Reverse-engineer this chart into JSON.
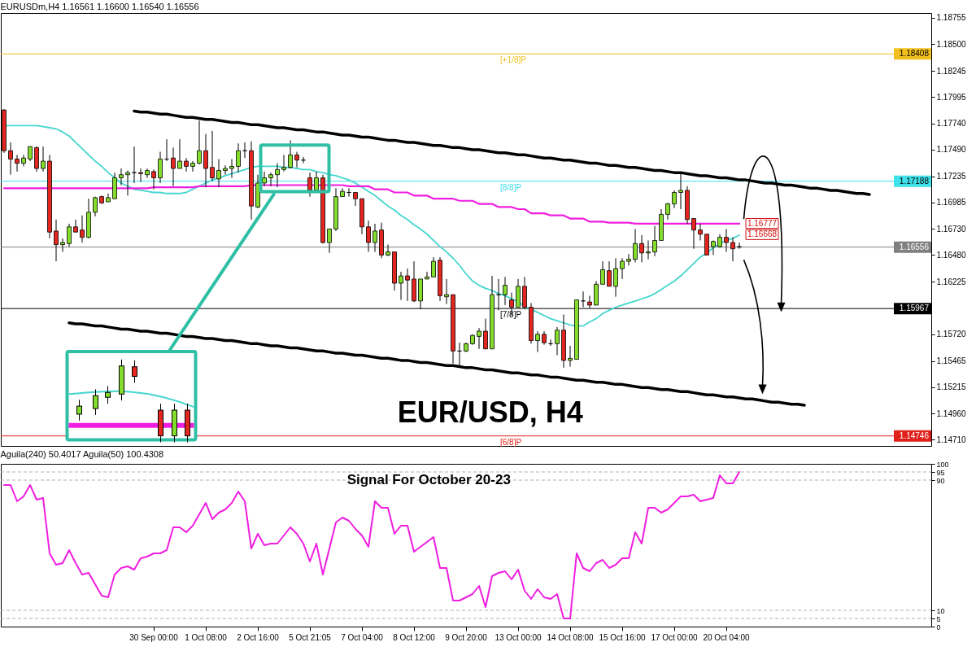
{
  "chart_data": [
    {
      "type": "candlestick",
      "title": "EURUSDm,H4  1.16561 1.16600 1.16540 1.16556",
      "categories": [
        null,
        null,
        null,
        null,
        null,
        null,
        null,
        null,
        null,
        null,
        null,
        null,
        null,
        null,
        null,
        null,
        null,
        null,
        null,
        null,
        null,
        null,
        null,
        null,
        null,
        null,
        null,
        null,
        null,
        null,
        null,
        null,
        null,
        null,
        null,
        null,
        null,
        null,
        null,
        null,
        null,
        null,
        null,
        null,
        null,
        null,
        null,
        null,
        null,
        null,
        null,
        null,
        null,
        null,
        null,
        null,
        null,
        null,
        null,
        null,
        null,
        null,
        null,
        null,
        null,
        null,
        null,
        null,
        null,
        null,
        null,
        null,
        null,
        null,
        null,
        null,
        null,
        null,
        null,
        null,
        null,
        null,
        null,
        null,
        null,
        null,
        null,
        null,
        null,
        null,
        null,
        null,
        null,
        null,
        null,
        null,
        null,
        null,
        null,
        null,
        null,
        null,
        null,
        null,
        null,
        null,
        null,
        null,
        null,
        null,
        null,
        null,
        null,
        null,
        null,
        null,
        null,
        null,
        null,
        null,
        null,
        null,
        null,
        null,
        null,
        null,
        null,
        null,
        null,
        null,
        null,
        null,
        null,
        null,
        null,
        null,
        null,
        null,
        null,
        null,
        null,
        null,
        null
      ],
      "ohlc": [
        [
          1.1787,
          1.1788,
          1.1746,
          1.1748
        ],
        [
          1.1748,
          1.1756,
          1.1725,
          1.174
        ],
        [
          1.174,
          1.1744,
          1.1728,
          1.1736
        ],
        [
          1.1736,
          1.1744,
          1.1733,
          1.1741
        ],
        [
          1.174,
          1.1752,
          1.1738,
          1.1752
        ],
        [
          1.1751,
          1.1752,
          1.1728,
          1.1731
        ],
        [
          1.1731,
          1.1752,
          1.1728,
          1.1738
        ],
        [
          1.1738,
          1.1744,
          1.1664,
          1.167
        ],
        [
          1.1671,
          1.1682,
          1.1642,
          1.1658
        ],
        [
          1.1658,
          1.1664,
          1.1651,
          1.166
        ],
        [
          1.1659,
          1.1678,
          1.1656,
          1.1675
        ],
        [
          1.1675,
          1.1682,
          1.167,
          1.167
        ],
        [
          1.1672,
          1.1686,
          1.166,
          1.1665
        ],
        [
          1.1665,
          1.1702,
          1.1664,
          1.1689
        ],
        [
          1.1689,
          1.1704,
          1.1685,
          1.1703
        ],
        [
          1.1704,
          1.1705,
          1.1697,
          1.1698
        ],
        [
          1.1699,
          1.1707,
          1.1699,
          1.1703
        ],
        [
          1.1702,
          1.1727,
          1.1702,
          1.1722
        ],
        [
          1.1722,
          1.1731,
          1.1715,
          1.1725
        ],
        [
          1.1725,
          1.1729,
          1.1705,
          1.1727
        ],
        [
          1.1727,
          1.1752,
          1.1717,
          1.1727
        ],
        [
          1.1727,
          1.1731,
          1.1718,
          1.1726
        ],
        [
          1.1725,
          1.1731,
          1.1722,
          1.1729
        ],
        [
          1.1728,
          1.173,
          1.1711,
          1.1722
        ],
        [
          1.1722,
          1.1747,
          1.1717,
          1.174
        ],
        [
          1.174,
          1.1759,
          1.1738,
          1.174
        ],
        [
          1.1741,
          1.1751,
          1.1714,
          1.1731
        ],
        [
          1.1731,
          1.1759,
          1.1731,
          1.1738
        ],
        [
          1.1738,
          1.1741,
          1.1728,
          1.1733
        ],
        [
          1.1733,
          1.1738,
          1.1728,
          1.1736
        ],
        [
          1.1736,
          1.1777,
          1.1735,
          1.1748
        ],
        [
          1.1748,
          1.1764,
          1.1713,
          1.1731
        ],
        [
          1.1732,
          1.1767,
          1.1719,
          1.1722
        ],
        [
          1.1721,
          1.174,
          1.1713,
          1.1729
        ],
        [
          1.1729,
          1.1734,
          1.1725,
          1.1731
        ],
        [
          1.1731,
          1.174,
          1.1722,
          1.1733
        ],
        [
          1.1733,
          1.1755,
          1.1727,
          1.1748
        ],
        [
          1.1748,
          1.1756,
          1.1741,
          1.1748
        ],
        [
          1.1748,
          1.1757,
          1.1682,
          1.1695
        ],
        [
          1.1694,
          1.1725,
          1.1693,
          1.1717
        ],
        [
          1.1717,
          1.1728,
          1.1714,
          1.1722
        ],
        [
          1.1722,
          1.1727,
          1.1714,
          1.1725
        ],
        [
          1.1725,
          1.1736,
          1.1713,
          1.173
        ],
        [
          1.173,
          1.1744,
          1.1728,
          1.1732
        ],
        [
          1.1732,
          1.1758,
          1.1731,
          1.1744
        ],
        [
          1.1744,
          1.1747,
          1.1732,
          1.1739
        ],
        [
          1.1739,
          1.1742,
          1.1736,
          1.1739
        ],
        [
          1.1722,
          1.1727,
          1.1704,
          1.171
        ],
        [
          1.171,
          1.1728,
          1.171,
          1.1722
        ],
        [
          1.1722,
          1.1725,
          1.1659,
          1.166
        ],
        [
          1.166,
          1.1673,
          1.165,
          1.1673
        ],
        [
          1.1673,
          1.1712,
          1.1671,
          1.1704
        ],
        [
          1.1704,
          1.1712,
          1.1704,
          1.1709
        ],
        [
          1.1708,
          1.1712,
          1.1704,
          1.1708
        ],
        [
          1.1708,
          1.1708,
          1.1695,
          1.1702
        ],
        [
          1.1702,
          1.1702,
          1.1668,
          1.1675
        ],
        [
          1.1675,
          1.1681,
          1.1651,
          1.166
        ],
        [
          1.166,
          1.1678,
          1.1651,
          1.1671
        ],
        [
          1.1672,
          1.1679,
          1.1645,
          1.1648
        ],
        [
          1.1648,
          1.1658,
          1.1647,
          1.1651
        ],
        [
          1.1651,
          1.1651,
          1.1614,
          1.1621
        ],
        [
          1.1621,
          1.1632,
          1.1605,
          1.1628
        ],
        [
          1.1628,
          1.1635,
          1.1604,
          1.1624
        ],
        [
          1.1625,
          1.1642,
          1.1603,
          1.1604
        ],
        [
          1.1604,
          1.1625,
          1.1596,
          1.1625
        ],
        [
          1.1625,
          1.1632,
          1.1625,
          1.1627
        ],
        [
          1.1627,
          1.1646,
          1.1627,
          1.1642
        ],
        [
          1.1643,
          1.1646,
          1.1604,
          1.1609
        ],
        [
          1.1608,
          1.1625,
          1.1601,
          1.161
        ],
        [
          1.161,
          1.161,
          1.1544,
          1.1556
        ],
        [
          1.1556,
          1.1564,
          1.1541,
          1.1556
        ],
        [
          1.1556,
          1.1564,
          1.1555,
          1.1563
        ],
        [
          1.1563,
          1.1572,
          1.1562,
          1.1571
        ],
        [
          1.157,
          1.1578,
          1.1558,
          1.1575
        ],
        [
          1.1575,
          1.1587,
          1.1558,
          1.1558
        ],
        [
          1.1558,
          1.1628,
          1.1558,
          1.161
        ],
        [
          1.161,
          1.1625,
          1.1595,
          1.161
        ],
        [
          1.161,
          1.1627,
          1.16,
          1.1619
        ],
        [
          1.1605,
          1.1612,
          1.159,
          1.1598
        ],
        [
          1.1598,
          1.1625,
          1.1598,
          1.1618
        ],
        [
          1.1618,
          1.1627,
          1.1596,
          1.1598
        ],
        [
          1.1598,
          1.1602,
          1.1563,
          1.1566
        ],
        [
          1.1566,
          1.1575,
          1.1555,
          1.1572
        ],
        [
          1.1572,
          1.1575,
          1.1562,
          1.1564
        ],
        [
          1.1563,
          1.1567,
          1.1561,
          1.1563
        ],
        [
          1.1563,
          1.1579,
          1.1552,
          1.1576
        ],
        [
          1.1576,
          1.1591,
          1.154,
          1.1547
        ],
        [
          1.1547,
          1.1561,
          1.1541,
          1.1549
        ],
        [
          1.1548,
          1.1605,
          1.1548,
          1.1605
        ],
        [
          1.1604,
          1.1613,
          1.1598,
          1.1604
        ],
        [
          1.1603,
          1.1609,
          1.1597,
          1.16
        ],
        [
          1.16,
          1.1623,
          1.16,
          1.162
        ],
        [
          1.162,
          1.1642,
          1.162,
          1.1634
        ],
        [
          1.1633,
          1.1642,
          1.1618,
          1.1618
        ],
        [
          1.1618,
          1.1645,
          1.1608,
          1.1635
        ],
        [
          1.1635,
          1.1645,
          1.1625,
          1.1642
        ],
        [
          1.1642,
          1.1649,
          1.1638,
          1.1644
        ],
        [
          1.1644,
          1.1673,
          1.1641,
          1.1659
        ],
        [
          1.1659,
          1.1667,
          1.1641,
          1.165
        ],
        [
          1.165,
          1.1662,
          1.1644,
          1.1651
        ],
        [
          1.1651,
          1.1676,
          1.1647,
          1.1662
        ],
        [
          1.1662,
          1.1692,
          1.1662,
          1.1687
        ],
        [
          1.1687,
          1.1698,
          1.1682,
          1.1697
        ],
        [
          1.1697,
          1.171,
          1.1693,
          1.1708
        ],
        [
          1.1708,
          1.1727,
          1.1692,
          1.171
        ],
        [
          1.171,
          1.1714,
          1.1678,
          1.1682
        ],
        [
          1.1683,
          1.1683,
          1.1654,
          1.1672
        ],
        [
          1.1672,
          1.1678,
          1.1662,
          1.1668
        ],
        [
          1.1668,
          1.1668,
          1.1648,
          1.1648
        ],
        [
          1.1656,
          1.1662,
          1.1648,
          1.1661
        ],
        [
          1.1656,
          1.1668,
          1.1655,
          1.1665
        ],
        [
          1.1665,
          1.1673,
          1.1651,
          1.166
        ],
        [
          1.166,
          1.1665,
          1.1642,
          1.1654
        ],
        [
          1.16561,
          1.166,
          1.1654,
          1.16556
        ],
        null,
        null,
        null,
        null,
        null,
        null,
        null,
        null,
        null,
        null,
        null,
        null,
        null,
        null,
        null,
        null,
        null,
        null,
        null,
        null,
        null,
        null,
        null,
        null,
        null,
        null,
        null,
        null,
        null
      ],
      "colors": [
        "#e3261f",
        "#e3261f",
        "#e3261f",
        "#84dc2c",
        "#84dc2c",
        "#e3261f",
        "#84dc2c",
        "#e3261f",
        "#e3261f",
        "#84dc2c",
        "#84dc2c",
        "#e3261f",
        "#e3261f",
        "#84dc2c",
        "#84dc2c",
        "#e3261f",
        "#84dc2c",
        "#84dc2c",
        "#84dc2c",
        "#84dc2c",
        "#000000",
        "#e3261f",
        "#84dc2c",
        "#e3261f",
        "#84dc2c",
        "#000000",
        "#e3261f",
        "#84dc2c",
        "#e3261f",
        "#84dc2c",
        "#84dc2c",
        "#e3261f",
        "#e3261f",
        "#84dc2c",
        "#84dc2c",
        "#84dc2c",
        "#84dc2c",
        "#000000",
        "#e3261f",
        "#84dc2c",
        "#84dc2c",
        "#84dc2c",
        "#84dc2c",
        "#84dc2c",
        "#84dc2c",
        "#e3261f",
        "#000000",
        "#e3261f",
        "#84dc2c",
        "#e3261f",
        "#84dc2c",
        "#84dc2c",
        "#84dc2c",
        "#000000",
        "#e3261f",
        "#e3261f",
        "#e3261f",
        "#84dc2c",
        "#e3261f",
        "#84dc2c",
        "#e3261f",
        "#84dc2c",
        "#e3261f",
        "#e3261f",
        "#84dc2c",
        "#84dc2c",
        "#84dc2c",
        "#e3261f",
        "#84dc2c",
        "#e3261f",
        "#000000",
        "#84dc2c",
        "#84dc2c",
        "#84dc2c",
        "#e3261f",
        "#84dc2c",
        "#000000",
        "#84dc2c",
        "#e3261f",
        "#84dc2c",
        "#e3261f",
        "#e3261f",
        "#84dc2c",
        "#e3261f",
        "#000000",
        "#84dc2c",
        "#e3261f",
        "#84dc2c",
        "#84dc2c",
        "#000000",
        "#e3261f",
        "#84dc2c",
        "#84dc2c",
        "#e3261f",
        "#84dc2c",
        "#84dc2c",
        "#84dc2c",
        "#84dc2c",
        "#e3261f",
        "#84dc2c",
        "#84dc2c",
        "#84dc2c",
        "#84dc2c",
        "#84dc2c",
        "#84dc2c",
        "#e3261f",
        "#e3261f",
        "#e3261f",
        "#e3261f",
        "#84dc2c",
        "#84dc2c",
        "#e3261f",
        "#e3261f",
        "#e3261f",
        null,
        null,
        null,
        null,
        null,
        null,
        null,
        null,
        null,
        null,
        null,
        null,
        null,
        null,
        null,
        null,
        null,
        null,
        null,
        null,
        null,
        null,
        null,
        null,
        null,
        null,
        null,
        null,
        null
      ],
      "series": [
        {
          "type": "line",
          "color": "#45d6cf",
          "values": [
            1.1772,
            1.1772,
            1.1772,
            1.1772,
            1.1772,
            1.1772,
            1.1771,
            1.177,
            1.1769,
            1.1766,
            1.1762,
            1.1756,
            1.175,
            1.1744,
            1.1738,
            1.1733,
            1.1727,
            1.1722,
            1.1717,
            1.1714,
            1.1711,
            1.171,
            1.1709,
            1.1708,
            1.1708,
            1.1707,
            1.1707,
            1.1707,
            1.1708,
            1.1711,
            1.1714,
            1.1717,
            1.172,
            1.1722,
            1.1724,
            1.1726,
            1.1728,
            1.173,
            1.1732,
            1.1733,
            1.1733,
            1.1733,
            1.1733,
            1.1732,
            1.1732,
            1.1731,
            1.173,
            1.173,
            1.1728,
            1.1727,
            1.1725,
            1.1724,
            1.1722,
            1.172,
            1.1717,
            1.1713,
            1.1709,
            1.1705,
            1.17,
            1.1695,
            1.1691,
            1.1686,
            1.1682,
            1.1677,
            1.1673,
            1.1668,
            1.1662,
            1.1656,
            1.1651,
            1.1645,
            1.1638,
            1.163,
            1.1623,
            1.1619,
            1.1616,
            1.1614,
            1.1611,
            1.1609,
            1.1606,
            1.1603,
            1.1599,
            1.1596,
            1.1593,
            1.159,
            1.1587,
            1.1585,
            1.1583,
            1.1581,
            1.158,
            1.158,
            1.1584,
            1.1587,
            1.1592,
            1.1595,
            1.1598,
            1.16,
            1.1602,
            1.1604,
            1.1606,
            1.1608,
            1.1611,
            1.1615,
            1.1619,
            1.1623,
            1.1628,
            1.1634,
            1.164,
            1.1646,
            1.165,
            1.1655,
            1.1659,
            1.1662,
            1.1664,
            1.1667,
            null,
            null,
            null,
            null,
            null,
            null,
            null,
            null,
            null,
            null,
            null,
            null,
            null,
            null,
            null,
            null,
            null,
            null,
            null,
            null,
            null,
            null,
            null,
            null,
            null,
            null,
            null,
            null,
            null
          ]
        },
        {
          "type": "line",
          "color": "#f01ee0",
          "values": [
            1.1712,
            1.1712,
            1.1712,
            1.1712,
            1.1712,
            1.1712,
            1.1712,
            1.1712,
            1.1712,
            1.1712,
            1.1712,
            1.1712,
            1.1712,
            1.1712,
            1.1712,
            1.1712,
            1.1712,
            1.1712,
            1.1712,
            1.1712,
            1.1712,
            1.1712,
            1.1712,
            1.1713,
            1.1713,
            1.1713,
            1.1713,
            1.1713,
            1.1713,
            1.1713,
            1.1714,
            1.1714,
            1.1714,
            1.1714,
            1.1714,
            1.1714,
            1.1714,
            1.1714,
            1.1715,
            1.1715,
            1.1715,
            1.1715,
            1.1715,
            1.1715,
            1.1715,
            1.1715,
            1.1715,
            1.1715,
            1.1715,
            1.1715,
            1.1715,
            1.1715,
            1.1715,
            1.1714,
            1.1714,
            1.1714,
            1.1714,
            1.1711,
            1.1711,
            1.1711,
            1.1708,
            1.1708,
            1.1708,
            1.1705,
            1.1705,
            1.1705,
            1.1702,
            1.1702,
            1.1702,
            1.1702,
            1.17,
            1.17,
            1.17,
            1.1697,
            1.1697,
            1.1697,
            1.1694,
            1.1694,
            1.1694,
            1.1692,
            1.1692,
            1.1688,
            1.1688,
            1.1688,
            1.1686,
            1.1686,
            1.1686,
            1.1683,
            1.1683,
            1.1683,
            1.168,
            1.168,
            1.168,
            1.1679,
            1.1679,
            1.1679,
            1.1679,
            1.1678,
            1.1678,
            1.1678,
            1.1678,
            1.1678,
            1.1678,
            1.1678,
            1.1678,
            1.1678,
            1.1678,
            1.1678,
            1.1678,
            1.1678,
            1.1678,
            1.1678,
            1.1678,
            1.1678,
            null,
            null,
            null,
            null,
            null,
            null,
            null,
            null,
            null,
            null,
            null,
            null,
            null,
            null,
            null,
            null,
            null,
            null,
            null,
            null,
            null,
            null,
            null,
            null,
            null,
            null,
            null,
            null,
            null
          ]
        },
        {
          "type": "line",
          "color": "#000000",
          "values": [
            null,
            null,
            null,
            null,
            null,
            null,
            null,
            null,
            null,
            null,
            null,
            null,
            null,
            null,
            null,
            null,
            null,
            null,
            null,
            null,
            1.1786,
            1.1785,
            1.1785,
            1.1784,
            1.1783,
            1.1783,
            1.1782,
            1.1781,
            1.178,
            1.178,
            1.1779,
            1.1778,
            1.1778,
            1.1777,
            1.1776,
            1.1775,
            1.1775,
            1.1774,
            1.1773,
            1.1773,
            1.1772,
            1.1771,
            1.177,
            1.177,
            1.1769,
            1.1768,
            1.1768,
            1.1767,
            1.1766,
            1.1766,
            1.1765,
            1.1764,
            1.1763,
            1.1763,
            1.1762,
            1.1761,
            1.1761,
            1.176,
            1.1759,
            1.1758,
            1.1758,
            1.1757,
            1.1756,
            1.1756,
            1.1755,
            1.1754,
            1.1753,
            1.1753,
            1.1752,
            1.1751,
            1.1751,
            1.175,
            1.1749,
            1.1749,
            1.1748,
            1.1747,
            1.1746,
            1.1746,
            1.1745,
            1.1744,
            1.1744,
            1.1743,
            1.1742,
            1.1741,
            1.1741,
            1.174,
            1.1739,
            1.1739,
            1.1738,
            1.1737,
            1.1736,
            1.1736,
            1.1735,
            1.1734,
            1.1734,
            1.1733,
            1.1732,
            1.1732,
            1.1731,
            1.173,
            1.1729,
            1.1729,
            1.1728,
            1.1727,
            1.1727,
            1.1726,
            1.1725,
            1.1724,
            1.1724,
            1.1723,
            1.1722,
            1.1722,
            1.1721,
            1.172,
            1.172,
            1.1719,
            1.1718,
            1.1717,
            1.1717,
            1.1716,
            1.1715,
            1.1715,
            1.1714,
            1.1713,
            1.1712,
            1.1712,
            1.1711,
            1.171,
            1.171,
            1.1709,
            1.1708,
            1.1707,
            1.1707,
            1.1706,
            null,
            null,
            null,
            null,
            null,
            null,
            null,
            null,
            null
          ]
        },
        {
          "type": "line",
          "color": "#000000",
          "values": [
            null,
            null,
            null,
            null,
            null,
            null,
            null,
            null,
            null,
            null,
            1.1583,
            1.1582,
            1.1582,
            1.1581,
            1.158,
            1.158,
            1.1579,
            1.1578,
            1.1577,
            1.1577,
            1.1576,
            1.1575,
            1.1575,
            1.1574,
            1.1573,
            1.1573,
            1.1572,
            1.1571,
            1.157,
            1.157,
            1.1569,
            1.1568,
            1.1568,
            1.1567,
            1.1566,
            1.1566,
            1.1565,
            1.1564,
            1.1563,
            1.1563,
            1.1562,
            1.1561,
            1.1561,
            1.156,
            1.1559,
            1.1559,
            1.1558,
            1.1557,
            1.1556,
            1.1556,
            1.1555,
            1.1554,
            1.1554,
            1.1553,
            1.1552,
            1.1552,
            1.1551,
            1.155,
            1.1549,
            1.1549,
            1.1548,
            1.1547,
            1.1547,
            1.1546,
            1.1545,
            1.1545,
            1.1544,
            1.1543,
            1.1542,
            1.1542,
            1.1541,
            1.154,
            1.154,
            1.1539,
            1.1538,
            1.1538,
            1.1537,
            1.1536,
            1.1535,
            1.1535,
            1.1534,
            1.1533,
            1.1533,
            1.1532,
            1.1531,
            1.1531,
            1.153,
            1.1529,
            1.1528,
            1.1528,
            1.1527,
            1.1526,
            1.1526,
            1.1525,
            1.1524,
            1.1524,
            1.1523,
            1.1522,
            1.1521,
            1.1521,
            1.152,
            1.1519,
            1.1519,
            1.1518,
            1.1517,
            1.1517,
            1.1516,
            1.1515,
            1.1514,
            1.1514,
            1.1513,
            1.1512,
            1.1512,
            1.1511,
            1.151,
            1.151,
            1.1509,
            1.1508,
            1.1507,
            1.1507,
            1.1506,
            1.1505,
            1.1505,
            1.1504,
            null,
            null,
            null,
            null,
            null,
            null,
            null,
            null,
            null,
            null,
            null,
            null,
            null,
            null,
            null,
            null,
            null,
            null,
            null
          ]
        }
      ],
      "ylim": [
        1.1465,
        1.188
      ],
      "yticks": [
        1.18755,
        {
          "value": 1.185,
          "label": "1.18500"
        },
        1.18245,
        1.17995,
        {
          "value": 1.1774,
          "label": "1.17740"
        },
        {
          "value": 1.1749,
          "label": "1.17490"
        },
        1.17235,
        1.16985,
        {
          "value": 1.1673,
          "label": "1.16730"
        },
        {
          "value": 1.1648,
          "label": "1.16480"
        },
        1.16225,
        {
          "value": 1.1572,
          "label": "1.15720"
        },
        1.15465,
        1.15215,
        {
          "value": 1.1496,
          "label": "1.14960"
        },
        {
          "value": 1.1471,
          "label": "1.14710"
        }
      ],
      "tick_labels": "y",
      "ref_lines": [
        {
          "axis": "y",
          "value": 1.18408,
          "label": "1.18408",
          "color": "#f2c01e"
        },
        {
          "axis": "y",
          "value": 1.17188,
          "label": "1.17188",
          "color": "#3fe0e8"
        },
        {
          "axis": "y",
          "value": 1.16556,
          "label": "1.16556",
          "color": "#808080"
        },
        {
          "axis": "y",
          "value": 1.15967,
          "label": "1.15967",
          "color": "#000000"
        },
        {
          "axis": "y",
          "value": 1.14746,
          "label": "1.14746",
          "color": "#e0201a"
        }
      ],
      "annotations": [
        "EUR/USD, H4",
        "1.16777",
        "1.16668",
        {
          "text": "[+1/8]P",
          "y": 1.18408
        },
        {
          "text": "[8/8]P",
          "y": 1.17188
        },
        {
          "text": "[7/8]P",
          "y": 1.15967
        },
        {
          "text": "[6/8]P",
          "y": 1.14746
        }
      ]
    },
    {
      "type": "line",
      "title": "Aguila(240) 50.4017  Aguila(50) 100.4308",
      "categories": [
        null,
        null,
        null,
        null,
        null,
        null,
        null,
        null,
        null,
        null,
        null,
        null,
        null,
        null,
        null,
        null,
        null,
        null,
        null,
        null,
        null,
        null,
        null,
        "30 Sep 00:00",
        null,
        null,
        null,
        null,
        null,
        null,
        null,
        "1 Oct 08:00",
        null,
        null,
        null,
        null,
        null,
        null,
        null,
        "2 Oct 16:00",
        null,
        null,
        null,
        null,
        null,
        null,
        null,
        "5 Oct 21:05",
        null,
        null,
        null,
        null,
        null,
        null,
        null,
        "7 Oct 04:00",
        null,
        null,
        null,
        null,
        null,
        null,
        null,
        "8 Oct 12:00",
        null,
        null,
        null,
        null,
        null,
        null,
        null,
        "9 Oct 20:00",
        null,
        null,
        null,
        null,
        null,
        null,
        null,
        "13 Oct 00:00",
        null,
        null,
        null,
        null,
        null,
        null,
        null,
        "14 Oct 08:00",
        null,
        null,
        null,
        null,
        null,
        null,
        null,
        "15 Oct 16:00",
        null,
        null,
        null,
        null,
        null,
        null,
        null,
        "17 Oct 00:00",
        null,
        null,
        null,
        null,
        null,
        null,
        null,
        "20 Oct 04:00",
        null,
        null,
        null,
        null,
        null,
        null,
        null,
        null,
        null,
        null,
        null,
        null,
        null,
        null,
        null,
        null,
        null,
        null,
        null,
        null,
        null,
        null,
        null,
        null,
        null,
        null,
        null,
        null,
        null,
        null,
        null
      ],
      "series": [
        {
          "color": "#f01ee0",
          "values": [
            87,
            87,
            77,
            80,
            87,
            78,
            79,
            45,
            38,
            39,
            47,
            39,
            32,
            33,
            26,
            19,
            18,
            32,
            36,
            37,
            35,
            42,
            43,
            45,
            45,
            47,
            61,
            61,
            58,
            62,
            69,
            76,
            66,
            70,
            72,
            76,
            83,
            77,
            48,
            57,
            50,
            51,
            51,
            56,
            61,
            57,
            51,
            40,
            51,
            32,
            48,
            64,
            67,
            65,
            60,
            56,
            49,
            77,
            73,
            73,
            57,
            62,
            62,
            46,
            49,
            52,
            55,
            36,
            36,
            16,
            16,
            18,
            20,
            25,
            12,
            31,
            33,
            34,
            29,
            35,
            22,
            17,
            23,
            18,
            17,
            20,
            5,
            5,
            45,
            36,
            34,
            39,
            41,
            36,
            38,
            42,
            42,
            58,
            51,
            73,
            73,
            70,
            72,
            76,
            80,
            80,
            81,
            77,
            78,
            79,
            93,
            88,
            88,
            95,
            null,
            null,
            null,
            null,
            null,
            null,
            null,
            null,
            null,
            null,
            null,
            null,
            null,
            null,
            null,
            null,
            null,
            null,
            null,
            null,
            null,
            null,
            null,
            null,
            null,
            null,
            null,
            null,
            null
          ]
        }
      ],
      "ylim": [
        0,
        100
      ],
      "yticks": [
        0,
        5,
        10,
        90,
        95,
        100
      ],
      "ref_lines": [
        {
          "axis": "y",
          "value": 95,
          "color": "#b0b0b0",
          "line_style": "dashed"
        },
        {
          "axis": "y",
          "value": 90,
          "color": "#b0b0b0",
          "line_style": "dashed"
        },
        {
          "axis": "y",
          "value": 10,
          "color": "#b0b0b0",
          "line_style": "dashed"
        },
        {
          "axis": "y",
          "value": 5,
          "color": "#b0b0b0",
          "line_style": "dashed"
        }
      ],
      "annotations": [
        "Signal For October  20-23"
      ]
    }
  ]
}
